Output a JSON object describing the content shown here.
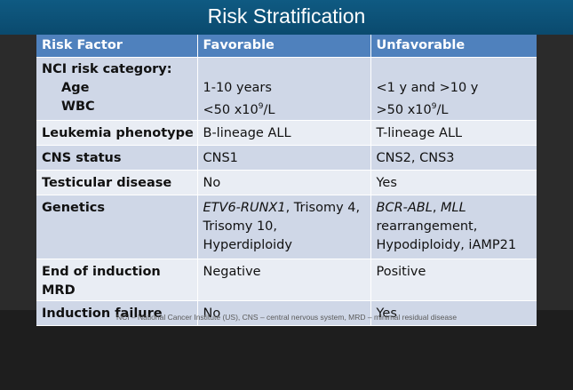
{
  "slide": {
    "title": "Risk Stratification",
    "footnote": "NCI – National Cancer Institute (US), CNS – central nervous system, MRD – minimal residual disease"
  },
  "table": {
    "headers": [
      "Risk Factor",
      "Favorable",
      "Unfavorable"
    ],
    "nci": {
      "label": "NCI risk category:",
      "age_label": "Age",
      "wbc_label": "WBC",
      "age_favorable": "1-10 years",
      "wbc_favorable_prefix": "<50 x10",
      "wbc_favorable_exp": "9",
      "wbc_favorable_suffix": "/L",
      "age_unfavorable": "<1 y and >10 y",
      "wbc_unfavorable_prefix": ">50 x10",
      "wbc_unfavorable_exp": "9",
      "wbc_unfavorable_suffix": "/L"
    },
    "phenotype": {
      "factor": "Leukemia phenotype",
      "favorable": "B-lineage ALL",
      "unfavorable": "T-lineage ALL"
    },
    "cns": {
      "factor": "CNS status",
      "favorable": "CNS1",
      "unfavorable": "CNS2, CNS3"
    },
    "testicular": {
      "factor": "Testicular disease",
      "favorable": "No",
      "unfavorable": "Yes"
    },
    "genetics": {
      "factor": "Genetics",
      "fav_gene": "ETV6-RUNX1",
      "fav_rest_1": ", Trisomy 4,",
      "fav_rest_2": "Trisomy 10,",
      "fav_rest_3": "Hyperdiploidy",
      "unfav_gene_1": "BCR-ABL",
      "unfav_sep": ", ",
      "unfav_gene_2": "MLL",
      "unfav_rest_1": "rearrangement,",
      "unfav_rest_2": "Hypodiploidy, iAMP21"
    },
    "mrd": {
      "factor": "End of induction MRD",
      "favorable": "Negative",
      "unfavorable": "Positive"
    },
    "failure": {
      "factor": "Induction failure",
      "favorable": "No",
      "unfavorable": "Yes"
    }
  }
}
